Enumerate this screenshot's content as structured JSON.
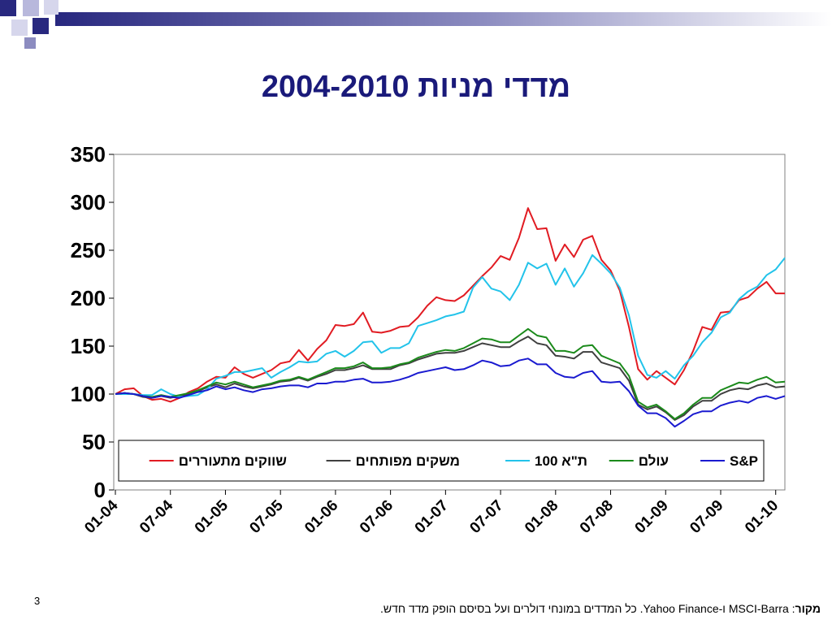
{
  "slide": {
    "title": "מדדי מניות 2004-2010",
    "page_number": "3",
    "source_label": "מקור",
    "source_text": ": MSCI-Barra ו-Yahoo Finance. כל המדדים במונחי דולרים ועל בסיסם הופק מדד חדש."
  },
  "colors": {
    "title": "#1a1a7a",
    "accent": "#28287f"
  },
  "chart_data": {
    "type": "line",
    "title": "",
    "xlabel": "",
    "ylabel": "",
    "ylim": [
      0,
      350
    ],
    "yticks": [
      0,
      50,
      100,
      150,
      200,
      250,
      300,
      350
    ],
    "x_tick_labels": [
      "01-04",
      "07-04",
      "01-05",
      "07-05",
      "01-06",
      "07-06",
      "01-07",
      "07-07",
      "01-08",
      "07-08",
      "01-09",
      "07-09",
      "01-10"
    ],
    "x_tick_index": [
      0,
      6,
      12,
      18,
      24,
      30,
      36,
      42,
      48,
      54,
      60,
      66,
      72
    ],
    "grid": false,
    "legend_position": "bottom, inside plot",
    "series": [
      {
        "name": "שווקים מתעוררים",
        "color": "#e11b22",
        "values": [
          100,
          105,
          106,
          98,
          94,
          95,
          92,
          96,
          102,
          106,
          113,
          118,
          117,
          128,
          121,
          117,
          121,
          125,
          132,
          134,
          146,
          135,
          147,
          156,
          172,
          171,
          173,
          185,
          165,
          164,
          166,
          170,
          171,
          180,
          192,
          201,
          198,
          197,
          203,
          213,
          223,
          232,
          244,
          240,
          263,
          294,
          272,
          273,
          239,
          256,
          243,
          261,
          265,
          240,
          229,
          208,
          170,
          126,
          115,
          124,
          117,
          110,
          125,
          145,
          170,
          167,
          185,
          186,
          198,
          201,
          210,
          217,
          205,
          205
        ]
      },
      {
        "name": "משקים מפותחים",
        "color": "#404040",
        "values": [
          100,
          101,
          100,
          97,
          96,
          98,
          96,
          98,
          100,
          103,
          107,
          110,
          107,
          111,
          108,
          106,
          108,
          110,
          113,
          114,
          117,
          114,
          118,
          121,
          125,
          125,
          127,
          130,
          126,
          126,
          126,
          130,
          132,
          136,
          139,
          142,
          143,
          143,
          145,
          149,
          153,
          151,
          149,
          149,
          155,
          160,
          153,
          151,
          140,
          139,
          137,
          144,
          144,
          133,
          130,
          127,
          114,
          89,
          84,
          87,
          81,
          73,
          78,
          87,
          93,
          93,
          100,
          104,
          106,
          105,
          109,
          111,
          107,
          108
        ]
      },
      {
        "name": "ת\"א 100",
        "color": "#22c3ea",
        "values": [
          100,
          100,
          100,
          99,
          99,
          105,
          100,
          97,
          98,
          99,
          105,
          116,
          119,
          123,
          123,
          125,
          127,
          117,
          123,
          128,
          134,
          133,
          134,
          142,
          145,
          139,
          145,
          154,
          155,
          143,
          148,
          148,
          153,
          171,
          174,
          177,
          181,
          183,
          186,
          211,
          222,
          210,
          207,
          198,
          214,
          237,
          231,
          236,
          214,
          231,
          212,
          226,
          245,
          236,
          226,
          211,
          182,
          140,
          120,
          117,
          124,
          116,
          130,
          140,
          154,
          164,
          180,
          185,
          199,
          207,
          212,
          224,
          230,
          242
        ]
      },
      {
        "name": "עולם",
        "color": "#1b8a1b",
        "values": [
          100,
          101,
          100,
          98,
          97,
          99,
          97,
          99,
          101,
          104,
          108,
          112,
          110,
          113,
          110,
          107,
          109,
          111,
          114,
          115,
          118,
          115,
          119,
          123,
          127,
          127,
          129,
          133,
          127,
          127,
          128,
          131,
          133,
          138,
          141,
          144,
          146,
          145,
          148,
          153,
          158,
          157,
          154,
          154,
          161,
          168,
          161,
          159,
          145,
          145,
          143,
          150,
          151,
          140,
          136,
          132,
          119,
          92,
          86,
          89,
          82,
          74,
          80,
          89,
          96,
          96,
          104,
          108,
          112,
          111,
          115,
          118,
          112,
          113
        ]
      },
      {
        "name": "S&P",
        "color": "#1a1ad0",
        "values": [
          100,
          101,
          100,
          98,
          96,
          98,
          97,
          96,
          99,
          102,
          104,
          108,
          105,
          107,
          104,
          102,
          105,
          106,
          108,
          109,
          109,
          107,
          111,
          111,
          113,
          113,
          115,
          116,
          112,
          112,
          113,
          115,
          118,
          122,
          124,
          126,
          128,
          125,
          126,
          130,
          135,
          133,
          129,
          130,
          135,
          137,
          131,
          131,
          122,
          118,
          117,
          122,
          124,
          113,
          112,
          113,
          103,
          88,
          80,
          80,
          75,
          66,
          72,
          79,
          82,
          82,
          88,
          91,
          93,
          91,
          96,
          98,
          95,
          98
        ]
      }
    ]
  }
}
